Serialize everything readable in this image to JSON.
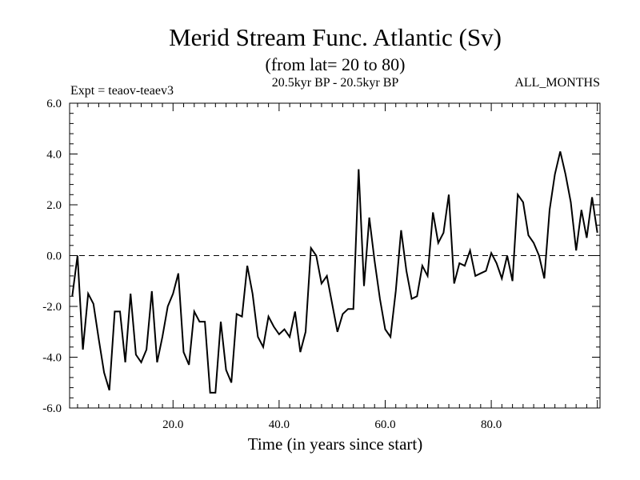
{
  "chart_data": {
    "type": "line",
    "title": "Merid Stream Func. Atlantic (Sv)",
    "subtitle": "(from lat= 20 to 80)",
    "header_left": "Expt = teaov-teaev3",
    "header_center": "20.5kyr BP - 20.5kyr BP",
    "header_right": "ALL_MONTHS",
    "xlabel": "Time (in years since start)",
    "ylabel": "",
    "xlim": [
      0.5,
      100.5
    ],
    "ylim": [
      -6.0,
      6.0
    ],
    "xticks": [
      20,
      40,
      60,
      80
    ],
    "xtick_labels": [
      "20.0",
      "40.0",
      "60.0",
      "80.0"
    ],
    "yticks": [
      -6,
      -4,
      -2,
      0,
      2,
      4,
      6
    ],
    "ytick_labels": [
      "-6.0",
      "-4.0",
      "-2.0",
      "0.0",
      "2.0",
      "4.0",
      "6.0"
    ],
    "reference_line": {
      "y": 0.0,
      "style": "dashed"
    },
    "grid": false,
    "series": [
      {
        "name": "Merid Stream Func. Atlantic",
        "x": [
          1,
          2,
          3,
          4,
          5,
          6,
          7,
          8,
          9,
          10,
          11,
          12,
          13,
          14,
          15,
          16,
          17,
          18,
          19,
          20,
          21,
          22,
          23,
          24,
          25,
          26,
          27,
          28,
          29,
          30,
          31,
          32,
          33,
          34,
          35,
          36,
          37,
          38,
          39,
          40,
          41,
          42,
          43,
          44,
          45,
          46,
          47,
          48,
          49,
          50,
          51,
          52,
          53,
          54,
          55,
          56,
          57,
          58,
          59,
          60,
          61,
          62,
          63,
          64,
          65,
          66,
          67,
          68,
          69,
          70,
          71,
          72,
          73,
          74,
          75,
          76,
          77,
          78,
          79,
          80,
          81,
          82,
          83,
          84,
          85,
          86,
          87,
          88,
          89,
          90,
          91,
          92,
          93,
          94,
          95,
          96,
          97,
          98,
          99,
          100
        ],
        "values": [
          -1.6,
          0.0,
          -3.7,
          -1.5,
          -1.9,
          -3.3,
          -4.6,
          -5.3,
          -2.2,
          -2.2,
          -4.2,
          -1.5,
          -3.9,
          -4.2,
          -3.7,
          -1.4,
          -4.2,
          -3.2,
          -2.0,
          -1.5,
          -0.7,
          -3.8,
          -4.3,
          -2.2,
          -2.6,
          -2.6,
          -5.4,
          -5.4,
          -2.6,
          -4.5,
          -5.0,
          -2.3,
          -2.4,
          -0.4,
          -1.5,
          -3.2,
          -3.6,
          -2.4,
          -2.8,
          -3.1,
          -2.9,
          -3.2,
          -2.2,
          -3.8,
          -3.0,
          0.3,
          0.0,
          -1.1,
          -0.8,
          -1.9,
          -3.0,
          -2.3,
          -2.1,
          -2.1,
          3.4,
          -1.2,
          1.5,
          -0.2,
          -1.7,
          -2.9,
          -3.2,
          -1.4,
          1.0,
          -0.6,
          -1.7,
          -1.6,
          -0.4,
          -0.8,
          1.7,
          0.5,
          0.9,
          2.4,
          -1.1,
          -0.3,
          -0.4,
          0.2,
          -0.8,
          -0.7,
          -0.6,
          0.1,
          -0.3,
          -0.9,
          0.0,
          -1.0,
          2.4,
          2.1,
          0.8,
          0.5,
          0.0,
          -0.9,
          1.8,
          3.2,
          4.1,
          3.2,
          2.1,
          0.2,
          1.8,
          0.7,
          2.3,
          0.9
        ]
      }
    ]
  }
}
